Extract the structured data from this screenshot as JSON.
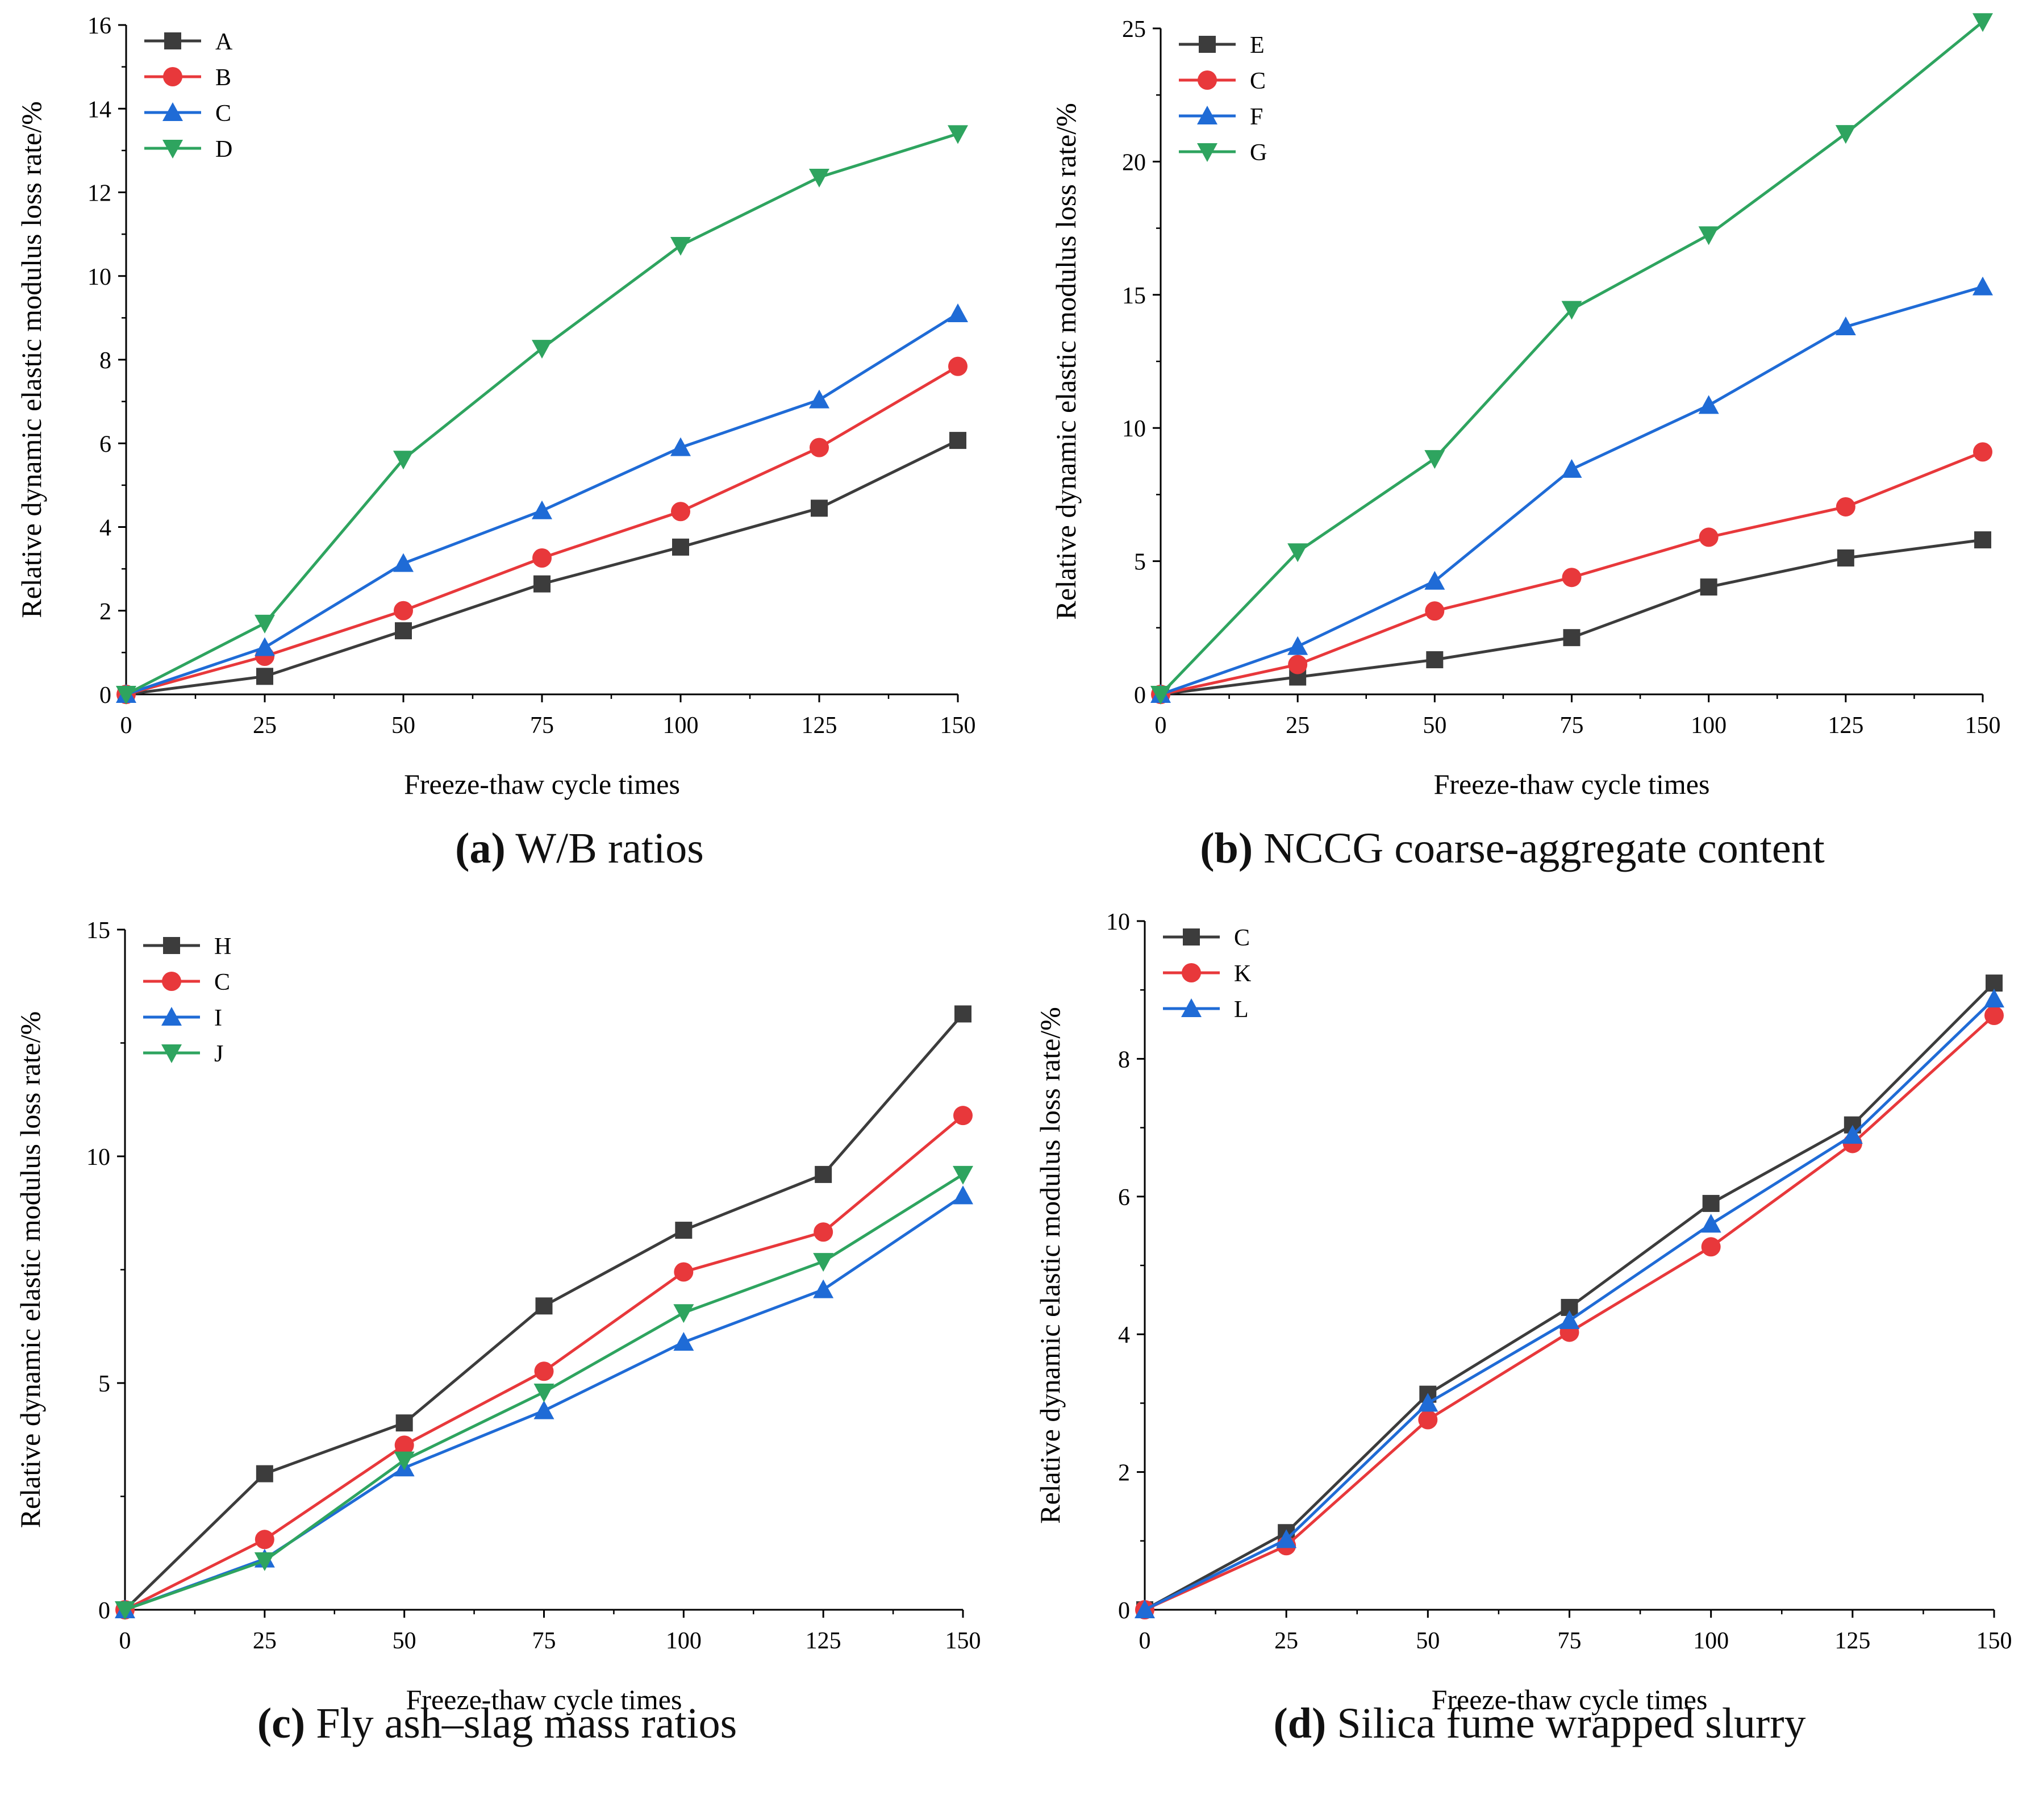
{
  "series_colors": {
    "black": "#3c3c3c",
    "red": "#e8383b",
    "blue": "#1f6bd6",
    "green": "#2ea45f"
  },
  "chart_data": [
    {
      "type": "line",
      "id": "a",
      "caption_letter": "(a)",
      "caption_text": " W/B ratios",
      "xlabel": "Freeze-thaw cycle times",
      "ylabel": "Relative dynamic elastic modulus loss rate/%",
      "x": [
        0,
        25,
        50,
        75,
        100,
        125,
        150
      ],
      "xticks": [
        "0",
        "25",
        "50",
        "75",
        "100",
        "125",
        "150"
      ],
      "yticks": [
        "0",
        "2",
        "4",
        "6",
        "8",
        "10",
        "12",
        "14",
        "16"
      ],
      "xlim": [
        0,
        150
      ],
      "ylim": [
        0,
        16
      ],
      "series": [
        {
          "name": "A",
          "color": "#3c3c3c",
          "marker": "square",
          "values": [
            0,
            0.43,
            1.52,
            2.64,
            3.52,
            4.45,
            6.07
          ]
        },
        {
          "name": "B",
          "color": "#e8383b",
          "marker": "circle",
          "values": [
            0,
            0.91,
            2.0,
            3.26,
            4.37,
            5.9,
            7.84
          ]
        },
        {
          "name": "C",
          "color": "#1f6bd6",
          "marker": "triangle",
          "values": [
            0,
            1.12,
            3.13,
            4.39,
            5.9,
            7.04,
            9.1
          ]
        },
        {
          "name": "D",
          "color": "#2ea45f",
          "marker": "tridown",
          "values": [
            0,
            1.7,
            5.62,
            8.27,
            10.73,
            12.36,
            13.4
          ]
        }
      ]
    },
    {
      "type": "line",
      "id": "b",
      "caption_letter": "(b)",
      "caption_text": " NCCG coarse-aggregate content",
      "xlabel": "Freeze-thaw cycle times",
      "ylabel": "Relative dynamic elastic modulus loss rate/%",
      "x": [
        0,
        25,
        50,
        75,
        100,
        125,
        150
      ],
      "xticks": [
        "0",
        "25",
        "50",
        "75",
        "100",
        "125",
        "150"
      ],
      "yticks": [
        "0",
        "5",
        "10",
        "15",
        "20",
        "25"
      ],
      "xlim": [
        0,
        150
      ],
      "ylim": [
        0,
        25
      ],
      "series": [
        {
          "name": "E",
          "color": "#3c3c3c",
          "marker": "square",
          "values": [
            0,
            0.65,
            1.3,
            2.13,
            4.03,
            5.12,
            5.8
          ]
        },
        {
          "name": "C",
          "color": "#e8383b",
          "marker": "circle",
          "values": [
            0,
            1.12,
            3.13,
            4.39,
            5.9,
            7.04,
            9.1
          ]
        },
        {
          "name": "F",
          "color": "#1f6bd6",
          "marker": "triangle",
          "values": [
            0,
            1.8,
            4.25,
            8.45,
            10.85,
            13.8,
            15.3
          ]
        },
        {
          "name": "G",
          "color": "#2ea45f",
          "marker": "tridown",
          "values": [
            0,
            5.35,
            8.85,
            14.45,
            17.25,
            21.05,
            25.25
          ]
        }
      ]
    },
    {
      "type": "line",
      "id": "c",
      "caption_letter": "(c)",
      "caption_text": " Fly ash–slag mass ratios",
      "xlabel": "Freeze-thaw cycle times",
      "ylabel": "Relative dynamic elastic modulus loss rate/%",
      "x": [
        0,
        25,
        50,
        75,
        100,
        125,
        150
      ],
      "xticks": [
        "0",
        "25",
        "50",
        "75",
        "100",
        "125",
        "150"
      ],
      "yticks": [
        "0",
        "5",
        "10",
        "15"
      ],
      "xlim": [
        0,
        150
      ],
      "ylim": [
        0,
        15
      ],
      "series": [
        {
          "name": "H",
          "color": "#3c3c3c",
          "marker": "square",
          "values": [
            0,
            3.0,
            4.12,
            6.7,
            8.37,
            9.6,
            13.14
          ]
        },
        {
          "name": "C",
          "color": "#e8383b",
          "marker": "circle",
          "values": [
            0,
            1.55,
            3.63,
            5.26,
            7.45,
            8.33,
            10.9
          ]
        },
        {
          "name": "I",
          "color": "#1f6bd6",
          "marker": "triangle",
          "values": [
            0,
            1.12,
            3.13,
            4.39,
            5.9,
            7.06,
            9.13
          ]
        },
        {
          "name": "J",
          "color": "#2ea45f",
          "marker": "tridown",
          "values": [
            0,
            1.08,
            3.3,
            4.8,
            6.55,
            7.68,
            9.6
          ]
        }
      ]
    },
    {
      "type": "line",
      "id": "d",
      "caption_letter": "(d)",
      "caption_text": " Silica fume wrapped slurry",
      "xlabel": "Freeze-thaw cycle times",
      "ylabel": "Relative dynamic elastic modulus loss rate/%",
      "x": [
        0,
        25,
        50,
        75,
        100,
        125,
        150
      ],
      "xticks": [
        "0",
        "25",
        "50",
        "75",
        "100",
        "125",
        "150"
      ],
      "yticks": [
        "0",
        "2",
        "4",
        "6",
        "8",
        "10"
      ],
      "xlim": [
        0,
        150
      ],
      "ylim": [
        0,
        10
      ],
      "series": [
        {
          "name": "C",
          "color": "#3c3c3c",
          "marker": "square",
          "values": [
            0,
            1.12,
            3.13,
            4.39,
            5.9,
            7.04,
            9.1
          ]
        },
        {
          "name": "K",
          "color": "#e8383b",
          "marker": "circle",
          "values": [
            0,
            0.93,
            2.76,
            4.03,
            5.27,
            6.77,
            8.63
          ]
        },
        {
          "name": "L",
          "color": "#1f6bd6",
          "marker": "triangle",
          "values": [
            0,
            1.02,
            3.0,
            4.2,
            5.6,
            6.89,
            8.87
          ]
        }
      ]
    }
  ]
}
